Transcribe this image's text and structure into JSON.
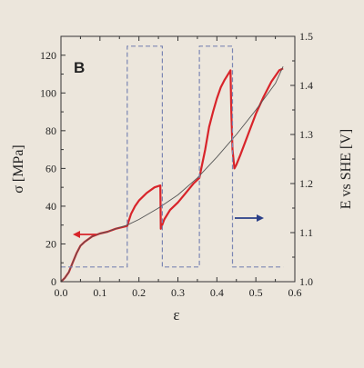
{
  "chart_data": {
    "type": "line",
    "panel_label": "B",
    "xlabel": "ε",
    "ylabel_left": "σ [MPa]",
    "ylabel_right": "E vs SHE [V]",
    "xlim": [
      0.0,
      0.6
    ],
    "ylim_left": [
      0,
      130
    ],
    "ylim_right": [
      1.0,
      1.5
    ],
    "x_ticks": [
      "0.0",
      "0.1",
      "0.2",
      "0.3",
      "0.4",
      "0.5",
      "0.6"
    ],
    "y_left_ticks": [
      "0",
      "20",
      "40",
      "60",
      "80",
      "100",
      "120"
    ],
    "y_right_ticks": [
      "1.0",
      "1.1",
      "1.2",
      "1.3",
      "1.4",
      "1.5"
    ],
    "grid": false,
    "colors": {
      "stress": "#d8242a",
      "baseline": "#555555",
      "potential": "#7b86b3",
      "left_arrow": "#d8242a",
      "right_arrow": "#2a3f88"
    },
    "series": [
      {
        "axis": "left",
        "style": "solid",
        "color_key": "stress",
        "x": [
          0.0,
          0.01,
          0.02,
          0.03,
          0.04,
          0.05,
          0.06,
          0.08,
          0.1,
          0.12,
          0.14,
          0.17,
          0.175,
          0.18,
          0.19,
          0.2,
          0.22,
          0.24,
          0.255,
          0.256,
          0.265,
          0.28,
          0.3,
          0.32,
          0.34,
          0.355,
          0.36,
          0.37,
          0.38,
          0.39,
          0.4,
          0.41,
          0.42,
          0.435,
          0.437,
          0.44,
          0.445,
          0.45,
          0.46,
          0.48,
          0.5,
          0.52,
          0.54,
          0.56,
          0.57
        ],
        "y": [
          0,
          2,
          5,
          10,
          15,
          19,
          21,
          24,
          25.5,
          26.5,
          28,
          29.5,
          33,
          36,
          40,
          43,
          47,
          50,
          51,
          28,
          33,
          38,
          42,
          47,
          52,
          55,
          60,
          70,
          82,
          90,
          97,
          103,
          107,
          112,
          90,
          70,
          60,
          62,
          67,
          78,
          89,
          98,
          106,
          112,
          113
        ]
      },
      {
        "axis": "left",
        "style": "solid",
        "color_key": "baseline",
        "x": [
          0.0,
          0.01,
          0.02,
          0.03,
          0.04,
          0.05,
          0.06,
          0.08,
          0.1,
          0.12,
          0.14,
          0.17,
          0.2,
          0.25,
          0.3,
          0.35,
          0.4,
          0.45,
          0.5,
          0.55,
          0.57
        ],
        "y": [
          0,
          2,
          5,
          10,
          15,
          19,
          21,
          24,
          25.5,
          26.5,
          28,
          30,
          33,
          39,
          46,
          55,
          66,
          78,
          91,
          105,
          114
        ]
      },
      {
        "axis": "right",
        "style": "dashed",
        "color_key": "potential",
        "x": [
          0.0,
          0.17,
          0.17,
          0.26,
          0.26,
          0.355,
          0.355,
          0.44,
          0.44,
          0.57
        ],
        "y": [
          1.03,
          1.03,
          1.48,
          1.48,
          1.03,
          1.03,
          1.48,
          1.48,
          1.03,
          1.03
        ]
      }
    ]
  }
}
